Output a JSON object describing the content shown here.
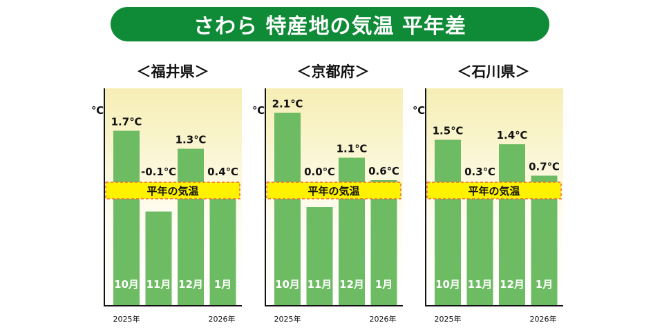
{
  "title": "さわら 特産地の気温 平年差",
  "chart_data": [
    {
      "type": "bar",
      "title": "＜福井県＞",
      "ylabel": "℃",
      "categories": [
        "10月",
        "11月",
        "12月",
        "1月"
      ],
      "values": [
        1.7,
        -0.1,
        1.3,
        0.4
      ],
      "data_labels": [
        "1.7℃",
        "-0.1℃",
        "1.3℃",
        "0.4℃"
      ],
      "year_labels": [
        "2025年",
        "2026年"
      ],
      "reference_label": "平年の気温"
    },
    {
      "type": "bar",
      "title": "＜京都府＞",
      "ylabel": "℃",
      "categories": [
        "10月",
        "11月",
        "12月",
        "1月"
      ],
      "values": [
        2.1,
        0.0,
        1.1,
        0.6
      ],
      "data_labels": [
        "2.1℃",
        "0.0℃",
        "1.1℃",
        "0.6℃"
      ],
      "year_labels": [
        "2025年",
        "2026年"
      ],
      "reference_label": "平年の気温"
    },
    {
      "type": "bar",
      "title": "＜石川県＞",
      "ylabel": "℃",
      "categories": [
        "10月",
        "11月",
        "12月",
        "1月"
      ],
      "values": [
        1.5,
        0.3,
        1.4,
        0.7
      ],
      "data_labels": [
        "1.5℃",
        "0.3℃",
        "1.4℃",
        "0.7℃"
      ],
      "year_labels": [
        "2025年",
        "2026年"
      ],
      "reference_label": "平年の気温"
    }
  ],
  "colors": {
    "title_bg": "#0f8a36",
    "bar": "#6dbb63",
    "band": "#fff200",
    "band_border": "#f0643c"
  }
}
